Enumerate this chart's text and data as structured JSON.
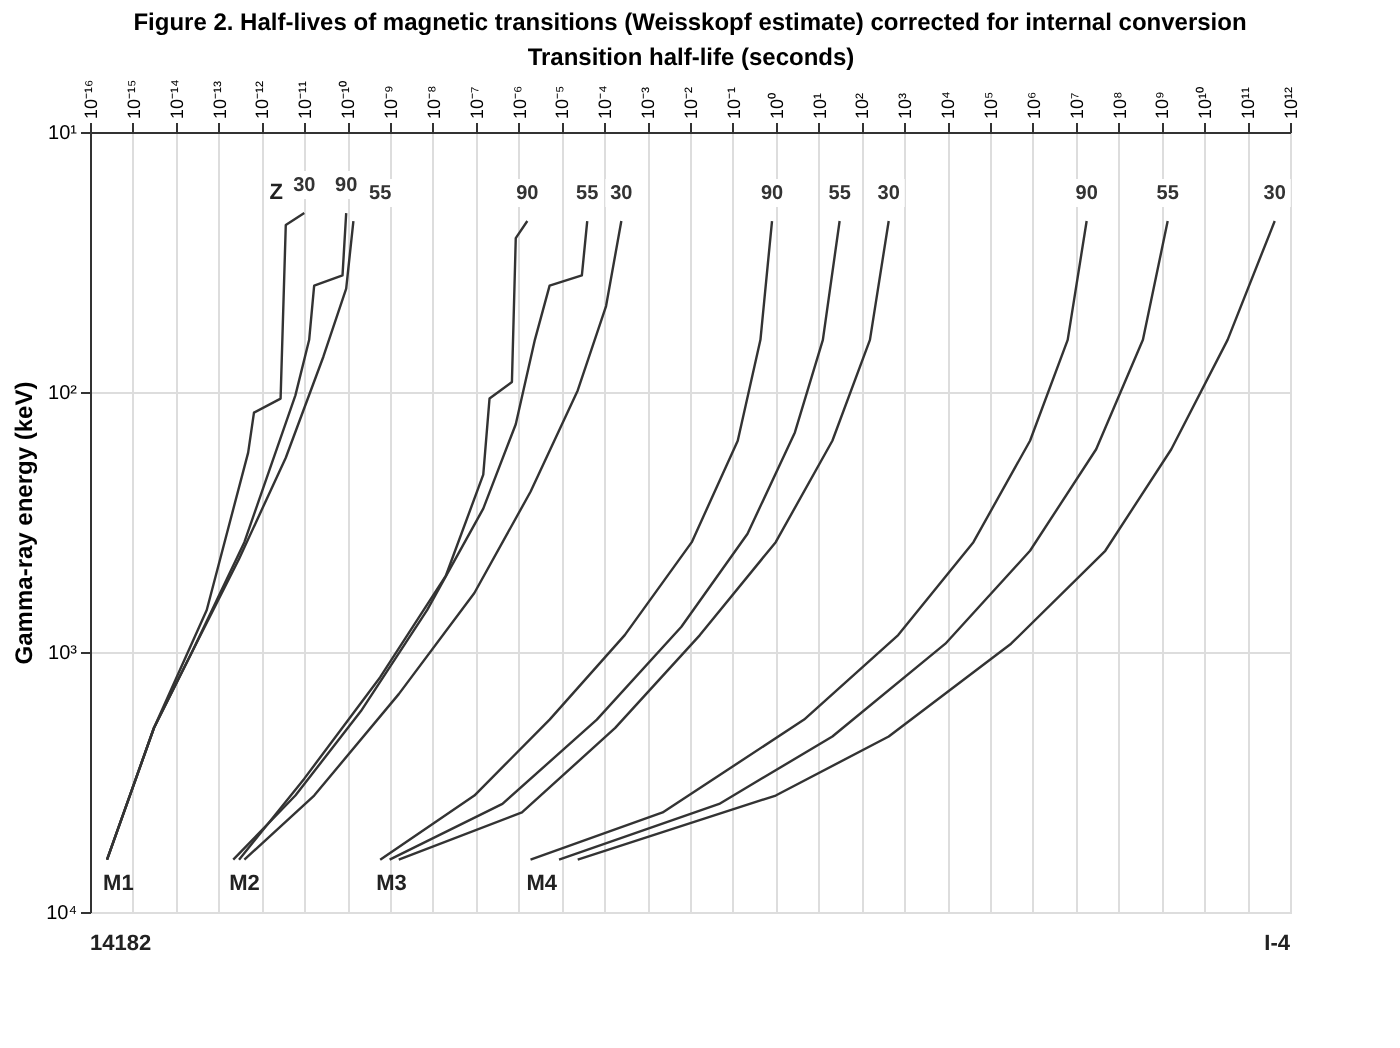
{
  "chart_data": {
    "type": "line",
    "title": "Figure 2. Half-lives of magnetic transitions (Weisskopf estimate) corrected for internal conversion",
    "xlabel": "Transition half-life (seconds)",
    "ylabel": "Gamma-ray energy (keV)",
    "log": "xy",
    "grid": true,
    "marker": "none",
    "line_style": "solid",
    "xlim": [
      1e-16,
      1000000000000.0
    ],
    "xticks": [
      {
        "value": 1e-16,
        "label": "10⁻¹⁶"
      },
      {
        "value": 1e-15,
        "label": "10⁻¹⁵"
      },
      {
        "value": 1e-14,
        "label": "10⁻¹⁴"
      },
      {
        "value": 1e-13,
        "label": "10⁻¹³"
      },
      {
        "value": 1e-12,
        "label": "10⁻¹²"
      },
      {
        "value": 1e-11,
        "label": "10⁻¹¹"
      },
      {
        "value": 1e-10,
        "label": "10⁻¹⁰"
      },
      {
        "value": 1e-09,
        "label": "10⁻⁹"
      },
      {
        "value": 1e-08,
        "label": "10⁻⁸"
      },
      {
        "value": 1e-07,
        "label": "10⁻⁷"
      },
      {
        "value": 1e-06,
        "label": "10⁻⁶"
      },
      {
        "value": 1e-05,
        "label": "10⁻⁵"
      },
      {
        "value": 0.0001,
        "label": "10⁻⁴"
      },
      {
        "value": 0.001,
        "label": "10⁻³"
      },
      {
        "value": 0.01,
        "label": "10⁻²"
      },
      {
        "value": 0.1,
        "label": "10⁻¹"
      },
      {
        "value": 1,
        "label": "10⁰"
      },
      {
        "value": 10,
        "label": "10¹"
      },
      {
        "value": 100,
        "label": "10²"
      },
      {
        "value": 1000.0,
        "label": "10³"
      },
      {
        "value": 10000.0,
        "label": "10⁴"
      },
      {
        "value": 100000.0,
        "label": "10⁵"
      },
      {
        "value": 1000000.0,
        "label": "10⁶"
      },
      {
        "value": 10000000.0,
        "label": "10⁷"
      },
      {
        "value": 100000000.0,
        "label": "10⁸"
      },
      {
        "value": 1000000000.0,
        "label": "10⁹"
      },
      {
        "value": 10000000000.0,
        "label": "10¹⁰"
      },
      {
        "value": 100000000000.0,
        "label": "10¹¹"
      },
      {
        "value": 1000000000000.0,
        "label": "10¹²"
      }
    ],
    "ylim": [
      10000,
      10
    ],
    "yticks": [
      {
        "value": 10,
        "label": "10¹"
      },
      {
        "value": 100,
        "label": "10²"
      },
      {
        "value": 1000,
        "label": "10³"
      },
      {
        "value": 10000,
        "label": "10⁴"
      }
    ],
    "series": [
      {
        "name": "55",
        "color": "#333333",
        "x": [
          1.4e-10,
          9.5e-11,
          2.8e-11,
          3.7e-12,
          3e-13,
          2.4e-14,
          3.1e-15,
          2.5e-16
        ],
        "values": [
          22,
          40,
          73,
          179,
          439,
          1000,
          1960,
          6290
        ]
      },
      {
        "name": "90",
        "color": "#333333",
        "x": [
          9.5e-11,
          7.8e-11,
          1.7e-11,
          1.3e-11,
          6.2e-12,
          4e-13,
          2.4e-14,
          3.1e-15,
          2.5e-16
        ],
        "values": [
          20.5,
          35.6,
          39,
          63,
          103,
          378,
          1000,
          1960,
          6290
        ]
      },
      {
        "name": "30",
        "color": "#333333",
        "x": [
          1e-11,
          3.7e-12,
          2.8e-12,
          6.7e-13,
          4.9e-13,
          5.3e-14,
          3.1e-15,
          2.5e-16
        ],
        "values": [
          20.5,
          22.8,
          106,
          120,
          171,
          689,
          1960,
          6290
        ]
      },
      {
        "name": "90",
        "color": "#333333",
        "x": [
          1.6e-06,
          8.6e-07,
          7e-07,
          2.1e-07,
          1.5e-07,
          2e-08,
          5.9e-10,
          1e-11,
          3e-13
        ],
        "values": [
          22,
          25.6,
          91.5,
          106,
          208,
          510,
          1250,
          3070,
          6290
        ]
      },
      {
        "name": "55",
        "color": "#333333",
        "x": [
          4e-05,
          3e-05,
          5.3e-06,
          2.4e-06,
          8.6e-07,
          1.5e-07,
          7.4e-09,
          2.1e-10,
          6.2e-12,
          2.2e-13
        ],
        "values": [
          22,
          35.6,
          39,
          63,
          133,
          281,
          689,
          1687,
          3565,
          6290
        ]
      },
      {
        "name": "30",
        "color": "#333333",
        "x": [
          0.00025,
          0.00011,
          2.4e-05,
          1.9e-06,
          9.3e-08,
          1.6e-09,
          1.7e-11,
          4e-13
        ],
        "values": [
          22,
          46.7,
          98.6,
          242,
          593,
          1452,
          3565,
          6290
        ]
      },
      {
        "name": "90",
        "color": "#333333",
        "x": [
          0.82,
          0.44,
          0.13,
          0.011,
          0.0003,
          5.3e-06,
          9.3e-08,
          5.9e-10
        ],
        "values": [
          22,
          63,
          154,
          378,
          861,
          1820,
          3565,
          6290
        ]
      },
      {
        "name": "55",
        "color": "#333333",
        "x": [
          31,
          12.6,
          2.8,
          0.22,
          0.0063,
          6.7e-05,
          4.2e-07,
          9.8e-10
        ],
        "values": [
          22,
          63,
          143,
          351,
          800,
          1820,
          3840,
          6290
        ]
      },
      {
        "name": "30",
        "color": "#333333",
        "x": [
          433,
          158,
          21,
          1,
          0.017,
          0.00018,
          1.2e-06,
          1.6e-09
        ],
        "values": [
          22,
          63,
          154,
          378,
          861,
          1959,
          4140,
          6290
        ]
      },
      {
        "name": "90",
        "color": "#333333",
        "x": [
          18000000.0,
          6500000.0,
          860000.0,
          41000.0,
          720,
          4.6,
          0.0023,
          1.9e-06
        ],
        "values": [
          22,
          63,
          154,
          378,
          861,
          1820,
          4140,
          6290
        ]
      },
      {
        "name": "55",
        "color": "#333333",
        "x": [
          1400000000.0,
          370000000.0,
          30000000.0,
          860000.0,
          9100.0,
          21,
          0.048,
          8.8e-06
        ],
        "values": [
          22,
          63,
          166,
          408,
          929,
          2113,
          3840,
          6290
        ]
      },
      {
        "name": "30",
        "color": "#333333",
        "x": [
          440000000000.0,
          35000000000.0,
          1700000000.0,
          49000000.0,
          310000.0,
          433,
          1,
          2.4e-05
        ],
        "values": [
          22,
          63,
          166,
          408,
          929,
          2113,
          3565,
          6290
        ]
      }
    ],
    "annotations": [
      "Z",
      "M1",
      "M2",
      "M3",
      "M4",
      "I-4",
      "14182"
    ]
  }
}
